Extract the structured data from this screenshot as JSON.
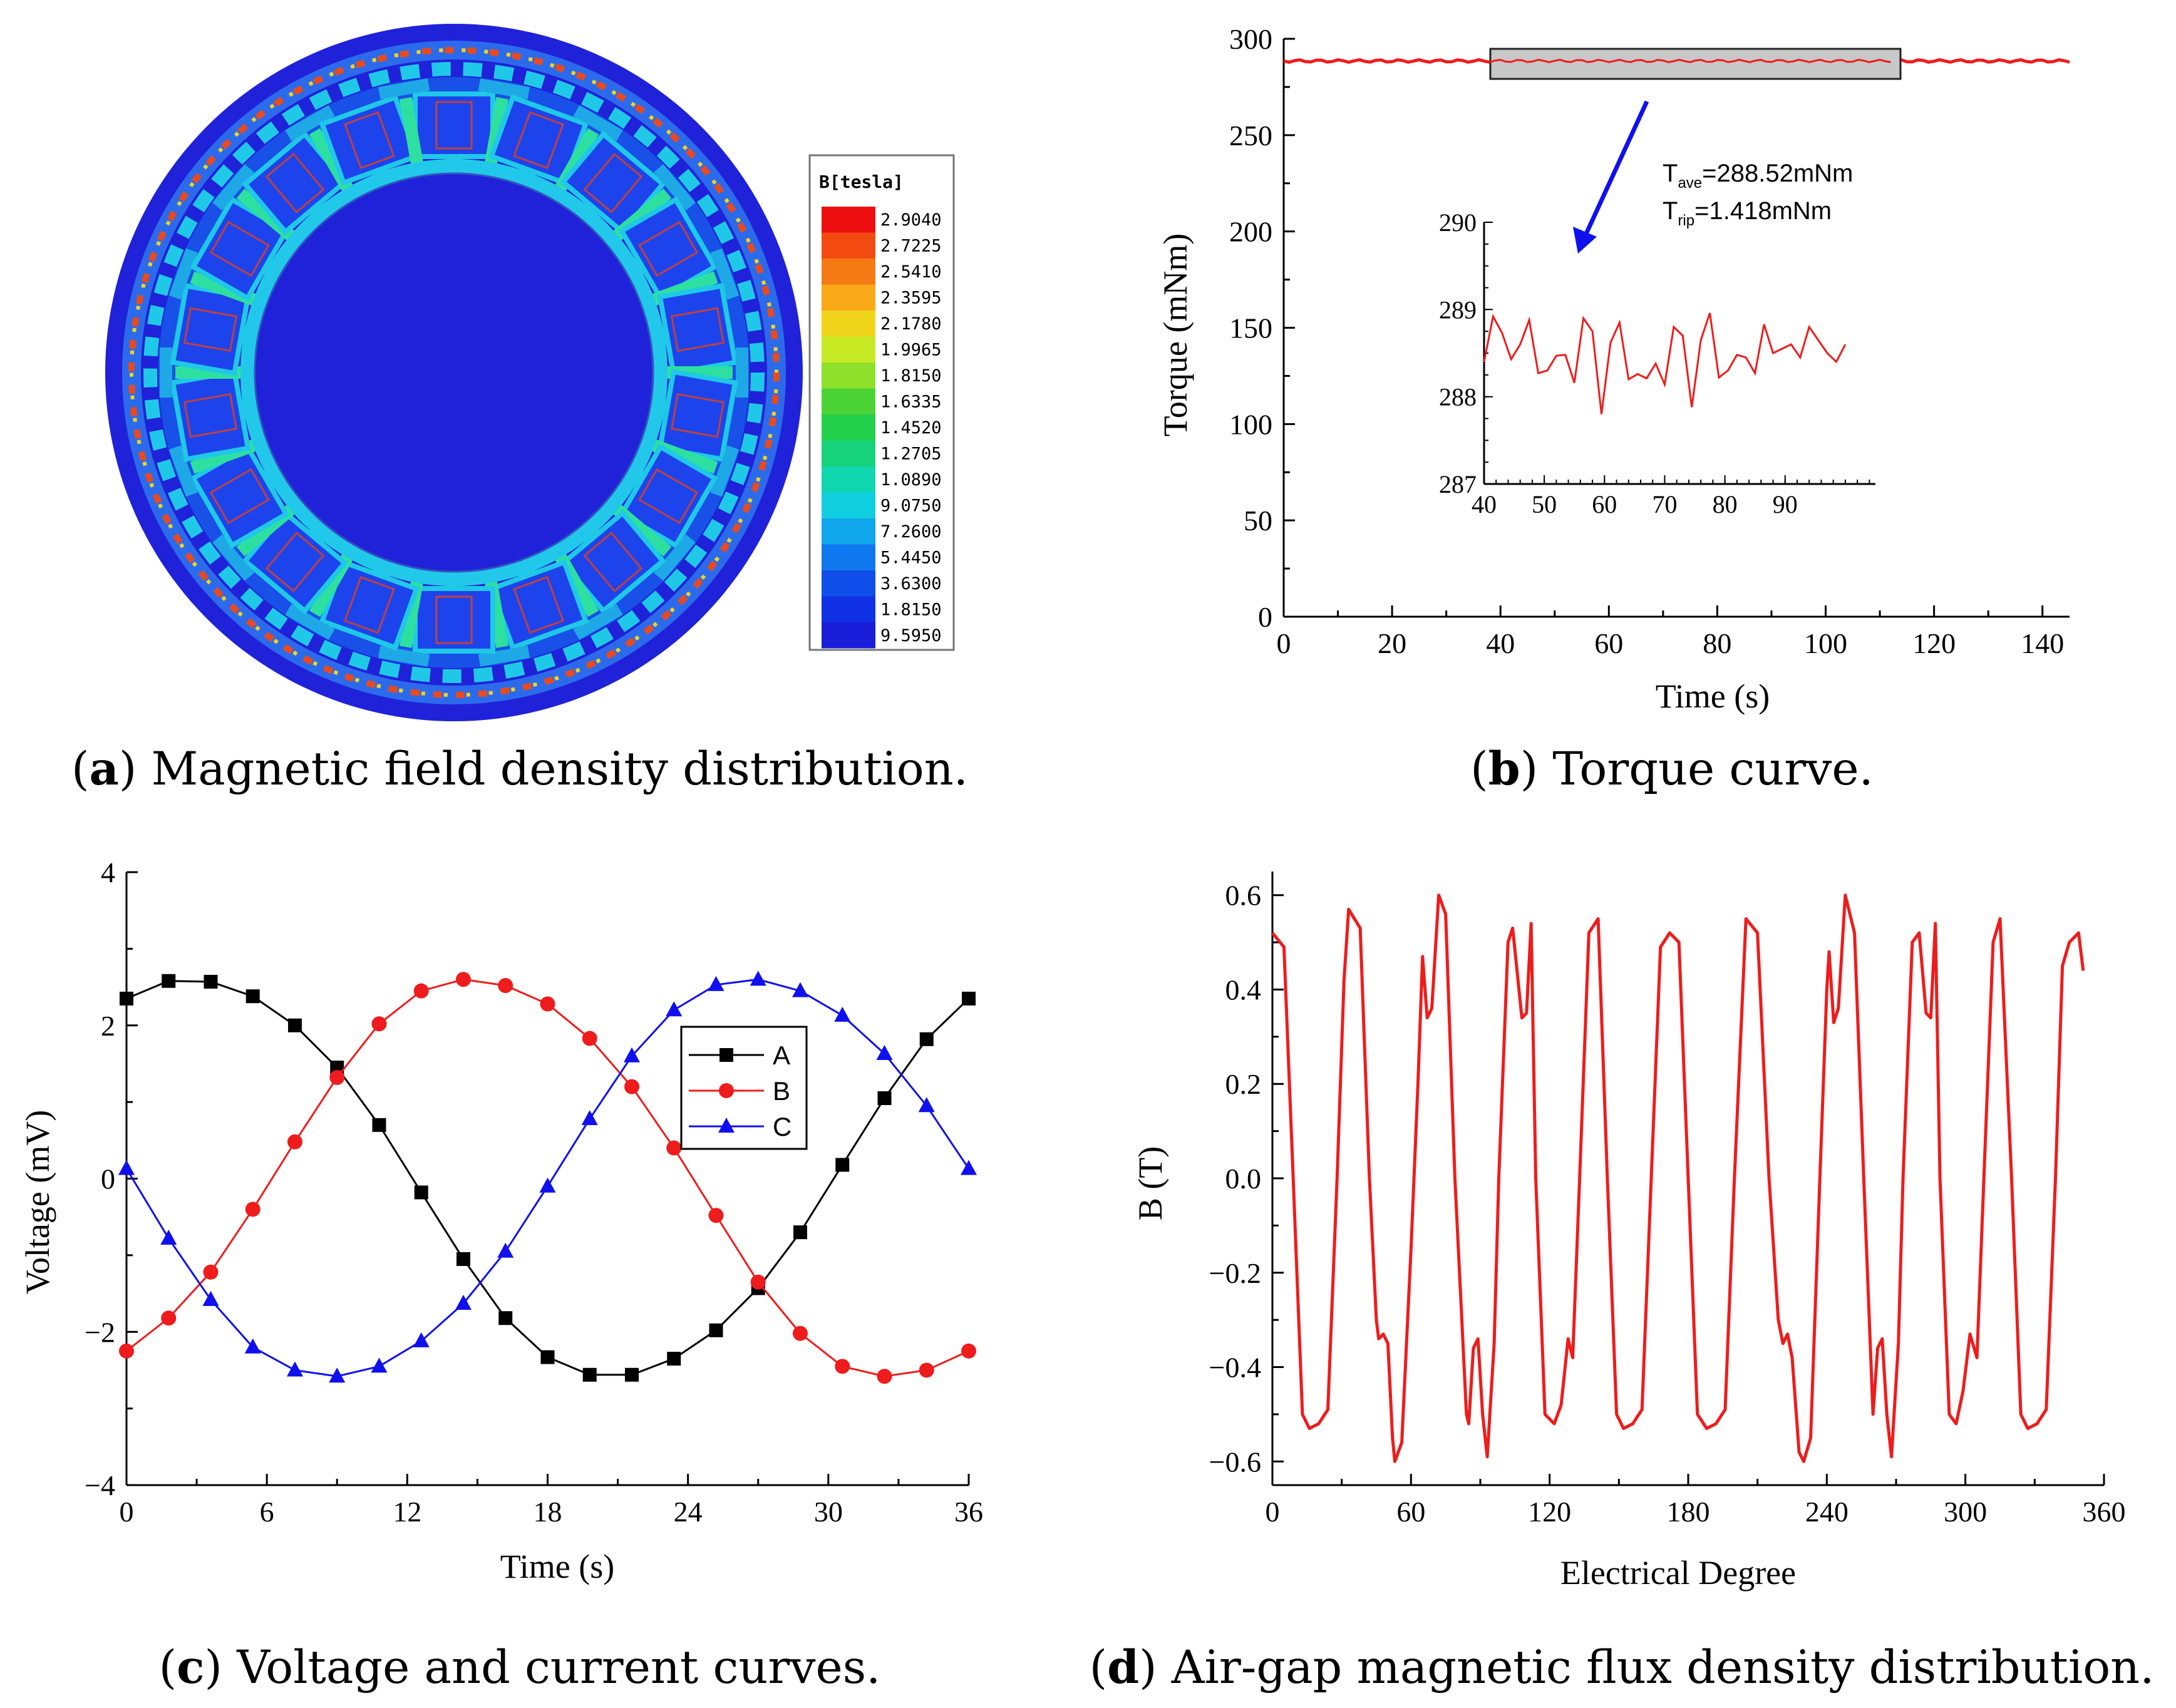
{
  "captions": {
    "a": {
      "letter": "a",
      "text": ") Magnetic field density distribution."
    },
    "b": {
      "letter": "b",
      "text": ") Torque curve."
    },
    "c": {
      "letter": "c",
      "text": ") Voltage and current curves."
    },
    "d": {
      "letter": "d",
      "text": ") Air-gap magnetic flux density distribution."
    }
  },
  "colors": {
    "accent_red": "#ee1c1c",
    "accent_blue": "#1010ee",
    "field_blue": "#1f22d8",
    "black": "#000000"
  },
  "chart_data": [
    {
      "id": "a",
      "type": "heatmap",
      "title": "Magnetic field density distribution",
      "legend_title": "B[tesla]",
      "legend_values": [
        "2.9040",
        "2.7225",
        "2.5410",
        "2.3595",
        "2.1780",
        "1.9965",
        "1.8150",
        "1.6335",
        "1.4520",
        "1.2705",
        "1.0890",
        "9.0750",
        "7.2600",
        "5.4450",
        "3.6300",
        "1.8150",
        "9.5950"
      ],
      "legend_colors": [
        "#ee1010",
        "#f24a10",
        "#f57a14",
        "#f9a818",
        "#f0d41c",
        "#c8ea24",
        "#8ee02a",
        "#4cd436",
        "#22d04a",
        "#16d27a",
        "#10d6b0",
        "#12cfe0",
        "#10a6ec",
        "#1078ee",
        "#104eea",
        "#1030e4",
        "#1a1ed8"
      ]
    },
    {
      "id": "b",
      "type": "line",
      "title": "Torque curve",
      "xlabel": "Time (s)",
      "ylabel": "Torque (mNm)",
      "xlim": [
        0,
        145
      ],
      "ylim": [
        0,
        300
      ],
      "xticks": [
        "0",
        "20",
        "40",
        "60",
        "80",
        "100",
        "120",
        "140"
      ],
      "yticks": [
        "0",
        "50",
        "100",
        "150",
        "200",
        "250",
        "300"
      ],
      "series": [
        {
          "name": "Torque",
          "value": 288.5
        }
      ],
      "annotation": {
        "t_ave": "T",
        "t_ave_sub": "ave",
        "t_ave_val": "=288.52mNm",
        "t_rip": "T",
        "t_rip_sub": "rip",
        "t_rip_val": "=1.418mNm"
      },
      "inset": {
        "xlim": [
          40,
          100
        ],
        "ylim": [
          287,
          290
        ],
        "xticks": [
          "40",
          "50",
          "60",
          "70",
          "80",
          "90"
        ],
        "yticks": [
          "287",
          "288",
          "289",
          "290"
        ],
        "x": [
          40,
          41.5,
          43,
          44.5,
          46,
          47.5,
          49,
          50.5,
          52,
          53.5,
          55,
          56.5,
          58,
          59.5,
          61,
          62.5,
          64,
          65.5,
          67,
          68.5,
          70,
          71.5,
          73,
          74.5,
          76,
          77.5,
          79,
          80.5,
          82,
          83.5,
          85,
          86.5,
          88,
          89.5,
          91,
          92.5,
          94,
          95.5,
          97,
          98.5,
          100
        ],
        "y": [
          288.4,
          288.92,
          288.73,
          288.43,
          288.6,
          288.88,
          288.27,
          288.3,
          288.47,
          288.48,
          288.16,
          288.9,
          288.75,
          287.8,
          288.62,
          288.85,
          288.2,
          288.26,
          288.21,
          288.38,
          288.14,
          288.8,
          288.7,
          287.88,
          288.65,
          288.96,
          288.22,
          288.3,
          288.48,
          288.45,
          288.27,
          288.83,
          288.5,
          288.55,
          288.6,
          288.45,
          288.8,
          288.65,
          288.5,
          288.4,
          288.6
        ]
      }
    },
    {
      "id": "c",
      "type": "line",
      "title": "Voltage and current curves",
      "xlabel": "Time (s)",
      "ylabel": "Voltage (mV)",
      "xlim": [
        0,
        36
      ],
      "ylim": [
        -4,
        4
      ],
      "xticks": [
        "0",
        "6",
        "12",
        "18",
        "24",
        "30",
        "36"
      ],
      "yticks": [
        "-4",
        "-2",
        "0",
        "2",
        "4"
      ],
      "x": [
        0,
        1.8,
        3.6,
        5.4,
        7.2,
        9,
        10.8,
        12.6,
        14.4,
        16.2,
        18,
        19.8,
        21.6,
        23.4,
        25.2,
        27,
        28.8,
        30.6,
        32.4,
        34.2,
        36
      ],
      "series": [
        {
          "name": "A",
          "color": "#000000",
          "marker": "square",
          "values": [
            2.35,
            2.58,
            2.57,
            2.38,
            2.0,
            1.45,
            0.7,
            -0.18,
            -1.05,
            -1.82,
            -2.33,
            -2.56,
            -2.56,
            -2.35,
            -1.98,
            -1.43,
            -0.7,
            0.18,
            1.05,
            1.82,
            2.35
          ]
        },
        {
          "name": "B",
          "color": "#ee1c1c",
          "marker": "circle",
          "values": [
            -2.25,
            -1.82,
            -1.22,
            -0.4,
            0.48,
            1.32,
            2.02,
            2.45,
            2.6,
            2.52,
            2.28,
            1.83,
            1.2,
            0.4,
            -0.48,
            -1.35,
            -2.02,
            -2.45,
            -2.58,
            -2.5,
            -2.25
          ]
        },
        {
          "name": "C",
          "color": "#1010ee",
          "marker": "triangle",
          "values": [
            0.13,
            -0.78,
            -1.58,
            -2.2,
            -2.5,
            -2.58,
            -2.45,
            -2.12,
            -1.63,
            -0.95,
            -0.1,
            0.78,
            1.6,
            2.2,
            2.53,
            2.6,
            2.45,
            2.13,
            1.63,
            0.95,
            0.13
          ]
        }
      ]
    },
    {
      "id": "d",
      "type": "line",
      "title": "Air-gap magnetic flux density distribution",
      "xlabel": "Electrical Degree",
      "ylabel": "B (T)",
      "xlim": [
        0,
        360
      ],
      "ylim": [
        -0.65,
        0.65
      ],
      "xticks": [
        "0",
        "60",
        "120",
        "180",
        "240",
        "300",
        "360"
      ],
      "yticks": [
        "0.6",
        "0.4",
        "0.2",
        "0.0",
        "−0.2",
        "−0.4",
        "−0.6"
      ],
      "series": [
        {
          "name": "B",
          "color": "#ee1c1c",
          "points": [
            [
              0,
              0.52
            ],
            [
              5,
              0.49
            ],
            [
              9,
              0.0
            ],
            [
              13,
              -0.5
            ],
            [
              16,
              -0.53
            ],
            [
              20,
              -0.52
            ],
            [
              24,
              -0.49
            ],
            [
              28,
              0.0
            ],
            [
              31,
              0.42
            ],
            [
              33,
              0.57
            ],
            [
              38,
              0.53
            ],
            [
              42,
              0.0
            ],
            [
              45,
              -0.3
            ],
            [
              46,
              -0.34
            ],
            [
              48,
              -0.33
            ],
            [
              50,
              -0.35
            ],
            [
              52,
              -0.55
            ],
            [
              53,
              -0.6
            ],
            [
              56,
              -0.56
            ],
            [
              60,
              -0.15
            ],
            [
              63,
              0.2
            ],
            [
              65,
              0.47
            ],
            [
              67,
              0.34
            ],
            [
              69,
              0.36
            ],
            [
              72,
              0.6
            ],
            [
              75,
              0.56
            ],
            [
              79,
              0.0
            ],
            [
              84,
              -0.5
            ],
            [
              85,
              -0.52
            ],
            [
              87,
              -0.36
            ],
            [
              89,
              -0.34
            ],
            [
              91,
              -0.5
            ],
            [
              93,
              -0.59
            ],
            [
              96,
              -0.35
            ],
            [
              98,
              0.0
            ],
            [
              102,
              0.5
            ],
            [
              104,
              0.53
            ],
            [
              108,
              0.34
            ],
            [
              110,
              0.35
            ],
            [
              112,
              0.54
            ],
            [
              114,
              0.0
            ],
            [
              118,
              -0.5
            ],
            [
              122,
              -0.52
            ],
            [
              125,
              -0.48
            ],
            [
              128,
              -0.34
            ],
            [
              130,
              -0.38
            ],
            [
              133,
              0.0
            ],
            [
              137,
              0.52
            ],
            [
              141,
              0.55
            ],
            [
              145,
              0.0
            ],
            [
              149,
              -0.5
            ],
            [
              152,
              -0.53
            ],
            [
              156,
              -0.52
            ],
            [
              160,
              -0.49
            ],
            [
              164,
              0.0
            ],
            [
              168,
              0.49
            ],
            [
              172,
              0.52
            ],
            [
              176,
              0.5
            ],
            [
              180,
              0.0
            ],
            [
              184,
              -0.5
            ],
            [
              188,
              -0.53
            ],
            [
              192,
              -0.52
            ],
            [
              196,
              -0.49
            ],
            [
              200,
              0.0
            ],
            [
              205,
              0.55
            ],
            [
              210,
              0.52
            ],
            [
              215,
              0.0
            ],
            [
              219,
              -0.3
            ],
            [
              221,
              -0.35
            ],
            [
              223,
              -0.33
            ],
            [
              225,
              -0.38
            ],
            [
              228,
              -0.58
            ],
            [
              230,
              -0.6
            ],
            [
              233,
              -0.55
            ],
            [
              237,
              0.0
            ],
            [
              240,
              0.4
            ],
            [
              241,
              0.48
            ],
            [
              243,
              0.33
            ],
            [
              245,
              0.36
            ],
            [
              248,
              0.6
            ],
            [
              252,
              0.52
            ],
            [
              256,
              0.0
            ],
            [
              260,
              -0.5
            ],
            [
              262,
              -0.36
            ],
            [
              264,
              -0.34
            ],
            [
              266,
              -0.5
            ],
            [
              268,
              -0.59
            ],
            [
              271,
              -0.35
            ],
            [
              273,
              0.0
            ],
            [
              277,
              0.5
            ],
            [
              280,
              0.52
            ],
            [
              283,
              0.35
            ],
            [
              285,
              0.34
            ],
            [
              287,
              0.54
            ],
            [
              289,
              0.0
            ],
            [
              293,
              -0.5
            ],
            [
              296,
              -0.52
            ],
            [
              299,
              -0.45
            ],
            [
              302,
              -0.33
            ],
            [
              305,
              -0.38
            ],
            [
              308,
              0.0
            ],
            [
              312,
              0.5
            ],
            [
              315,
              0.55
            ],
            [
              320,
              0.0
            ],
            [
              324,
              -0.5
            ],
            [
              327,
              -0.53
            ],
            [
              331,
              -0.52
            ],
            [
              335,
              -0.49
            ],
            [
              339,
              0.0
            ],
            [
              342,
              0.45
            ],
            [
              345,
              0.5
            ],
            [
              349,
              0.52
            ],
            [
              351,
              0.44
            ]
          ]
        }
      ]
    }
  ]
}
